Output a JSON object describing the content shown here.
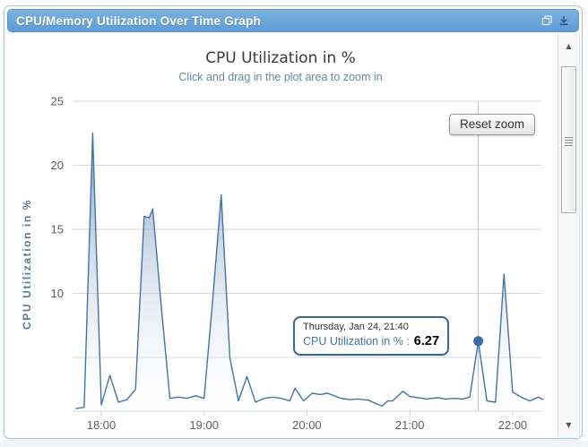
{
  "header": {
    "title": "CPU/Memory Utilization Over Time Graph",
    "icons": [
      {
        "name": "popout-icon"
      },
      {
        "name": "download-icon"
      }
    ]
  },
  "chart": {
    "title": "CPU Utilization in %",
    "subtitle": "Click and drag in the plot area to zoom in",
    "y_axis_title": "CPU Utilization in %",
    "reset_zoom_label": "Reset zoom",
    "tooltip": {
      "header": "Thursday, Jan 24, 21:40",
      "series_label": "CPU Utilization in % :",
      "value": "6.27"
    },
    "colors": {
      "series": "#4572A7",
      "tooltip_border": "#3a6494",
      "header_bar_top": "#7db1dd",
      "header_bar_bottom": "#5f9cd4",
      "gridline": "#d8d8d8",
      "axis_line": "#c6d3de",
      "crosshair": "#c0c0c0"
    }
  },
  "chart_data": {
    "type": "area",
    "title": "CPU Utilization in %",
    "subtitle": "Click and drag in the plot area to zoom in",
    "xlabel": "",
    "ylabel": "CPU Utilization in %",
    "x_tick_labels": [
      "18:00",
      "19:00",
      "20:00",
      "21:00",
      "22:00"
    ],
    "y_tick_labels": [
      10,
      15,
      20,
      25
    ],
    "y_gridlines": [
      5,
      10,
      15,
      20,
      25
    ],
    "ylim": [
      0.8,
      25
    ],
    "x_range": [
      "17:43",
      "22:19"
    ],
    "grid": "horizontal-only",
    "legend": "none",
    "hover_point": {
      "time": "21:40",
      "value": 6.27
    },
    "series": [
      {
        "name": "CPU Utilization in %",
        "color": "#4572A7",
        "points": [
          [
            "17:45",
            1.0
          ],
          [
            "17:50",
            1.1
          ],
          [
            "17:55",
            22.5
          ],
          [
            "18:00",
            1.3
          ],
          [
            "18:05",
            3.6
          ],
          [
            "18:10",
            1.5
          ],
          [
            "18:15",
            1.7
          ],
          [
            "18:20",
            2.5
          ],
          [
            "18:25",
            16.0
          ],
          [
            "18:28",
            15.9
          ],
          [
            "18:30",
            16.6
          ],
          [
            "18:35",
            9.0
          ],
          [
            "18:40",
            1.8
          ],
          [
            "18:45",
            1.9
          ],
          [
            "18:50",
            1.8
          ],
          [
            "18:55",
            2.0
          ],
          [
            "19:00",
            1.8
          ],
          [
            "19:05",
            9.5
          ],
          [
            "19:10",
            17.7
          ],
          [
            "19:15",
            5.0
          ],
          [
            "19:20",
            1.6
          ],
          [
            "19:25",
            3.5
          ],
          [
            "19:30",
            1.5
          ],
          [
            "19:35",
            1.8
          ],
          [
            "19:40",
            1.9
          ],
          [
            "19:45",
            1.8
          ],
          [
            "19:50",
            1.6
          ],
          [
            "19:53",
            2.6
          ],
          [
            "19:58",
            1.6
          ],
          [
            "20:03",
            2.2
          ],
          [
            "20:08",
            2.1
          ],
          [
            "20:12",
            2.2
          ],
          [
            "20:20",
            1.8
          ],
          [
            "20:25",
            1.7
          ],
          [
            "20:30",
            1.75
          ],
          [
            "20:36",
            1.65
          ],
          [
            "20:41",
            1.35
          ],
          [
            "20:44",
            1.2
          ],
          [
            "20:47",
            1.6
          ],
          [
            "20:50",
            1.6
          ],
          [
            "20:56",
            2.35
          ],
          [
            "21:00",
            1.95
          ],
          [
            "21:05",
            1.85
          ],
          [
            "21:10",
            1.75
          ],
          [
            "21:16",
            1.85
          ],
          [
            "21:21",
            1.75
          ],
          [
            "21:26",
            1.8
          ],
          [
            "21:31",
            1.75
          ],
          [
            "21:35",
            1.9
          ],
          [
            "21:40",
            6.27
          ],
          [
            "21:45",
            1.6
          ],
          [
            "21:50",
            1.5
          ],
          [
            "21:55",
            11.5
          ],
          [
            "22:00",
            2.3
          ],
          [
            "22:05",
            1.9
          ],
          [
            "22:10",
            1.6
          ],
          [
            "22:15",
            1.9
          ],
          [
            "22:18",
            1.7
          ]
        ]
      }
    ]
  },
  "scrollbar": {
    "up_icon": "▲",
    "down_icon": "▼"
  }
}
